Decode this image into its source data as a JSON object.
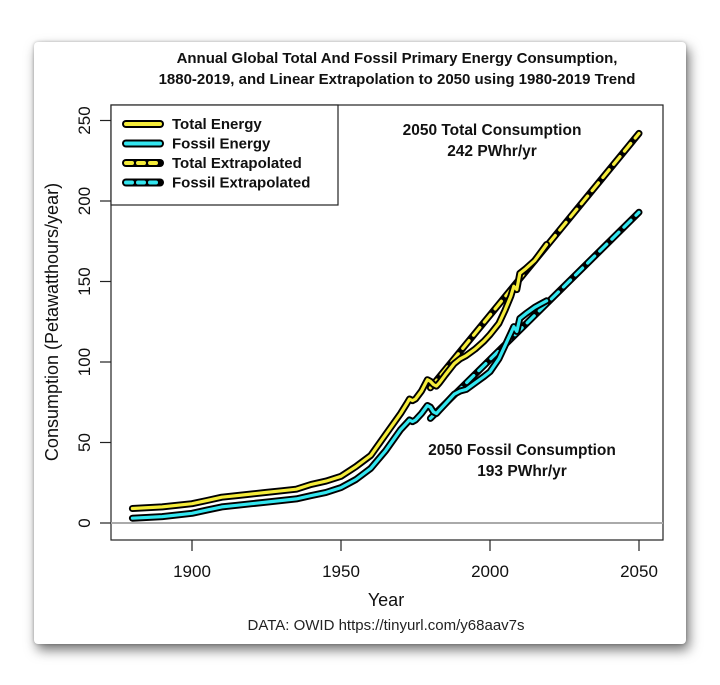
{
  "chart_data": {
    "type": "line",
    "title": "Annual Global Total And Fossil Primary Energy Consumption,",
    "title_line2": "1880-2019, and Linear Extrapolation to 2050 using 1980-2019 Trend",
    "xlabel": "Year",
    "ylabel": "Consumption (Petawatthours/year)",
    "source": "DATA: OWID https://tinyurl.com/y68aav7s",
    "xlim": [
      1873,
      2058
    ],
    "ylim": [
      -10,
      260
    ],
    "x_ticks": [
      1900,
      1950,
      2000,
      2050
    ],
    "x_tick_labels": [
      "1900",
      "1950",
      "2000",
      "2050"
    ],
    "y_ticks": [
      0,
      50,
      100,
      150,
      200,
      250
    ],
    "y_tick_labels": [
      "0",
      "50",
      "100",
      "150",
      "200",
      "250"
    ],
    "zero_line": true,
    "grid": false,
    "legend_position": "top-left",
    "legend": [
      {
        "label": "Total Energy",
        "color": "#f5ec3a",
        "style": "solid"
      },
      {
        "label": "Fossil Energy",
        "color": "#33e6f0",
        "style": "solid"
      },
      {
        "label": "Total Extrapolated",
        "color": "#f5ec3a",
        "style": "dashed"
      },
      {
        "label": "Fossil Extrapolated",
        "color": "#33e6f0",
        "style": "dashed"
      }
    ],
    "series": [
      {
        "name": "Total Energy",
        "color": "#f5ec3a",
        "style": "solid",
        "x": [
          1880,
          1890,
          1900,
          1905,
          1910,
          1915,
          1920,
          1925,
          1930,
          1935,
          1940,
          1945,
          1950,
          1955,
          1960,
          1965,
          1970,
          1972,
          1973,
          1974,
          1975,
          1977,
          1979,
          1980,
          1981,
          1982,
          1983,
          1985,
          1988,
          1990,
          1992,
          1995,
          1998,
          2000,
          2003,
          2005,
          2007,
          2008,
          2009,
          2010,
          2012,
          2015,
          2017,
          2019
        ],
        "values": [
          9,
          10,
          12,
          14,
          16,
          17,
          18,
          19,
          20,
          21,
          24,
          26,
          29,
          35,
          42,
          55,
          68,
          74,
          77,
          76,
          77,
          82,
          89,
          88,
          86,
          85,
          87,
          92,
          99,
          102,
          104,
          108,
          113,
          117,
          124,
          132,
          141,
          147,
          145,
          155,
          158,
          163,
          168,
          173
        ]
      },
      {
        "name": "Fossil Energy",
        "color": "#33e6f0",
        "style": "solid",
        "x": [
          1880,
          1890,
          1900,
          1905,
          1910,
          1915,
          1920,
          1925,
          1930,
          1935,
          1940,
          1945,
          1950,
          1955,
          1960,
          1965,
          1970,
          1972,
          1973,
          1974,
          1975,
          1977,
          1979,
          1980,
          1981,
          1982,
          1983,
          1985,
          1988,
          1990,
          1992,
          1995,
          1998,
          2000,
          2003,
          2005,
          2007,
          2008,
          2009,
          2010,
          2012,
          2015,
          2017,
          2019
        ],
        "values": [
          3,
          4,
          6,
          8,
          10,
          11,
          12,
          13,
          14,
          15,
          17,
          19,
          22,
          27,
          34,
          45,
          58,
          62,
          64,
          63,
          64,
          68,
          73,
          72,
          69,
          68,
          70,
          74,
          80,
          82,
          83,
          87,
          91,
          94,
          102,
          110,
          118,
          122,
          119,
          127,
          130,
          134,
          136,
          138
        ]
      },
      {
        "name": "Total Extrapolated",
        "color": "#f5ec3a",
        "style": "dashed",
        "x": [
          1980,
          2050
        ],
        "values": [
          84,
          242
        ]
      },
      {
        "name": "Fossil Extrapolated",
        "color": "#33e6f0",
        "style": "dashed",
        "x": [
          1980,
          2050
        ],
        "values": [
          65,
          193
        ]
      }
    ],
    "annotations": [
      {
        "line1": "2050 Total Consumption",
        "line2": "242 PWhr/yr"
      },
      {
        "line1": "2050 Fossil Consumption",
        "line2": "193 PWhr/yr"
      }
    ]
  }
}
